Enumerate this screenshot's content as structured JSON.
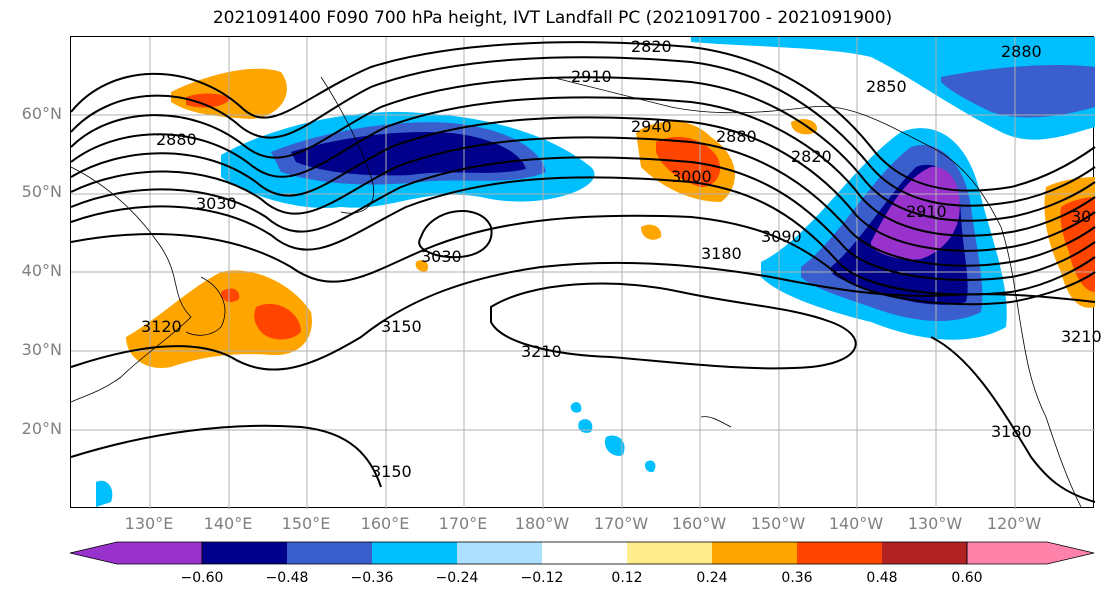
{
  "title": "2021091400 F090 700 hPa height, IVT Landfall PC (2021091700 - 2021091900)",
  "lat_labels": [
    "60°N",
    "50°N",
    "40°N",
    "30°N",
    "20°N"
  ],
  "lon_labels": [
    "130°E",
    "140°E",
    "150°E",
    "160°E",
    "170°E",
    "180°W",
    "170°W",
    "160°W",
    "150°W",
    "140°W",
    "130°W",
    "120°W"
  ],
  "contour_labels": [
    "2820",
    "2880",
    "2910",
    "2850",
    "2880",
    "2880",
    "2940",
    "3000",
    "2820",
    "3030",
    "3030",
    "2910",
    "3090",
    "3180",
    "3150",
    "3210",
    "3120",
    "3150",
    "3180",
    "3210",
    "30"
  ],
  "colorbar": {
    "ticks": [
      "−0.60",
      "−0.48",
      "−0.36",
      "−0.24",
      "−0.12",
      "0.12",
      "0.24",
      "0.36",
      "0.48",
      "0.60"
    ],
    "colors": [
      "#9932CC",
      "#00008B",
      "#3A5FCD",
      "#00BFFF",
      "#ADDFFF",
      "#FFFFFF",
      "#FFEC8B",
      "#FFA500",
      "#FF4500",
      "#B22222",
      "#FF82AB"
    ]
  }
}
